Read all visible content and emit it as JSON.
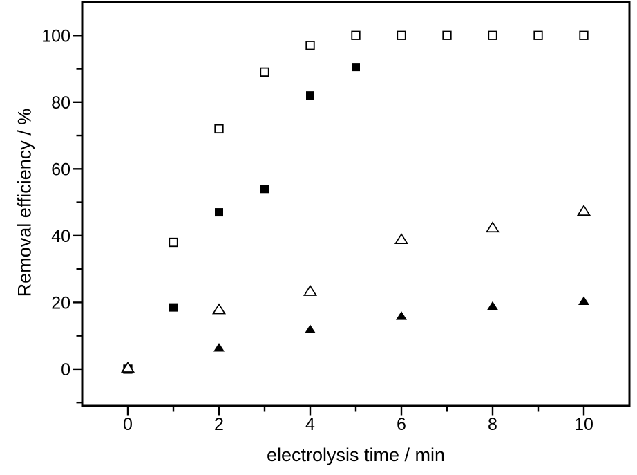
{
  "chart_data": {
    "type": "scatter",
    "title": "",
    "xlabel": "electrolysis time / min",
    "ylabel": "Removal efficiency / %",
    "xlim": [
      -1,
      11
    ],
    "ylim": [
      -11,
      110
    ],
    "x_ticks_major": [
      0,
      2,
      4,
      6,
      8,
      10
    ],
    "x_ticks_minor": [
      1,
      3,
      5,
      7,
      9
    ],
    "y_ticks_major": [
      0,
      20,
      40,
      60,
      80,
      100
    ],
    "y_ticks_minor": [
      -10,
      10,
      30,
      50,
      70,
      90
    ],
    "grid": false,
    "legend": "none",
    "colors": {
      "foreground": "#000000",
      "background": "#ffffff"
    },
    "series": [
      {
        "name": "open-square",
        "marker": "square-open",
        "points": [
          [
            0,
            0
          ],
          [
            1,
            38
          ],
          [
            2,
            72
          ],
          [
            3,
            89
          ],
          [
            4,
            97
          ],
          [
            5,
            100
          ],
          [
            6,
            100
          ],
          [
            7,
            100
          ],
          [
            8,
            100
          ],
          [
            9,
            100
          ],
          [
            10,
            100
          ]
        ]
      },
      {
        "name": "filled-square",
        "marker": "square-filled",
        "points": [
          [
            0,
            0
          ],
          [
            1,
            18.5
          ],
          [
            2,
            47
          ],
          [
            3,
            54
          ],
          [
            4,
            82
          ],
          [
            5,
            90.5
          ]
        ]
      },
      {
        "name": "filled-triangle",
        "marker": "triangle-filled",
        "points": [
          [
            0,
            0
          ],
          [
            2,
            6.5
          ],
          [
            4,
            12
          ],
          [
            6,
            16
          ],
          [
            8,
            19
          ],
          [
            10,
            20.5
          ]
        ]
      },
      {
        "name": "open-triangle",
        "marker": "triangle-open",
        "points": [
          [
            0,
            0.5
          ],
          [
            2,
            18
          ],
          [
            4,
            23.5
          ],
          [
            6,
            39
          ],
          [
            8,
            42.5
          ],
          [
            10,
            47.5
          ]
        ]
      }
    ]
  }
}
